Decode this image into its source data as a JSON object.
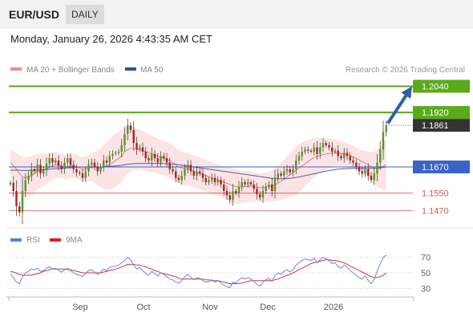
{
  "header": {
    "symbol": "EUR/USD",
    "timeframe": "DAILY",
    "timestamp": "Monday, January 26, 2026 4:43:35 AM CET"
  },
  "colors": {
    "resistance": "#5aaa1a",
    "support": "#3a63c8",
    "level_line": "#d9555a",
    "bollinger_fill": "#fde4e4",
    "ma20": "#e77b7b",
    "ma50": "#4a5fa8",
    "candle_up": "#4f9a1e",
    "candle_down": "#b01e1e",
    "arrow": "#2e5fa6",
    "price_box": "#333333",
    "rsi": "#6688d8",
    "rsi_9ma": "#d8333a"
  },
  "chart_data": [
    {
      "type": "candlestick",
      "legend": [
        {
          "label": "MA 20 + Bollinger Bands",
          "color": "#f08a8a"
        },
        {
          "label": "MA 50",
          "color": "#2f5597"
        }
      ],
      "source": "Research © 2026 Trading Central",
      "x_ticks": [
        "Sep",
        "Oct",
        "Nov",
        "Dec",
        "2026"
      ],
      "ylim": [
        1.142,
        1.2075
      ],
      "levels": [
        {
          "value": 1.204,
          "label": "1.2040",
          "kind": "resistance"
        },
        {
          "value": 1.192,
          "label": "1.1920",
          "kind": "resistance"
        },
        {
          "value": 1.1861,
          "label": "1.1861",
          "kind": "last-price"
        },
        {
          "value": 1.167,
          "label": "1.1670",
          "kind": "support"
        },
        {
          "value": 1.155,
          "label": "1.1550",
          "kind": "level"
        },
        {
          "value": 1.147,
          "label": "1.1470",
          "kind": "level"
        }
      ],
      "closes": [
        1.1598,
        1.156,
        1.149,
        1.1462,
        1.156,
        1.161,
        1.163,
        1.166,
        1.165,
        1.168,
        1.164,
        1.1655,
        1.1685,
        1.171,
        1.169,
        1.17,
        1.1675,
        1.166,
        1.169,
        1.171,
        1.168,
        1.166,
        1.1645,
        1.164,
        1.162,
        1.165,
        1.168,
        1.169,
        1.167,
        1.165,
        1.167,
        1.17,
        1.169,
        1.172,
        1.173,
        1.1735,
        1.174,
        1.177,
        1.182,
        1.186,
        1.184,
        1.178,
        1.175,
        1.176,
        1.174,
        1.171,
        1.17,
        1.173,
        1.171,
        1.169,
        1.172,
        1.171,
        1.169,
        1.166,
        1.165,
        1.162,
        1.161,
        1.163,
        1.166,
        1.168,
        1.165,
        1.163,
        1.165,
        1.164,
        1.162,
        1.16,
        1.161,
        1.162,
        1.16,
        1.161,
        1.159,
        1.156,
        1.154,
        1.152,
        1.156,
        1.155,
        1.158,
        1.16,
        1.159,
        1.16,
        1.159,
        1.157,
        1.1545,
        1.153,
        1.156,
        1.158,
        1.159,
        1.156,
        1.162,
        1.164,
        1.163,
        1.165,
        1.166,
        1.1645,
        1.166,
        1.17,
        1.172,
        1.174,
        1.175,
        1.1745,
        1.174,
        1.176,
        1.173,
        1.176,
        1.178,
        1.177,
        1.176,
        1.174,
        1.1745,
        1.172,
        1.171,
        1.1735,
        1.172,
        1.17,
        1.169,
        1.167,
        1.165,
        1.164,
        1.166,
        1.163,
        1.161,
        1.164,
        1.169,
        1.175,
        1.183,
        1.1861
      ],
      "ma20": [
        1.169,
        1.1675,
        1.166,
        1.164,
        1.1625,
        1.162,
        1.1625,
        1.163,
        1.164,
        1.165,
        1.165,
        1.1655,
        1.166,
        1.167,
        1.1675,
        1.168,
        1.168,
        1.1675,
        1.167,
        1.167,
        1.1675,
        1.1675,
        1.167,
        1.1665,
        1.166,
        1.166,
        1.1665,
        1.167,
        1.167,
        1.1665,
        1.1665,
        1.167,
        1.1675,
        1.168,
        1.169,
        1.17,
        1.171,
        1.172,
        1.174,
        1.175,
        1.1755,
        1.1755,
        1.175,
        1.175,
        1.1745,
        1.174,
        1.1735,
        1.173,
        1.1725,
        1.172,
        1.1715,
        1.171,
        1.1705,
        1.17,
        1.169,
        1.168,
        1.167,
        1.1665,
        1.166,
        1.166,
        1.1655,
        1.165,
        1.1645,
        1.164,
        1.1635,
        1.163,
        1.1625,
        1.162,
        1.1615,
        1.161,
        1.1605,
        1.16,
        1.1595,
        1.159,
        1.1585,
        1.158,
        1.1578,
        1.1578,
        1.158,
        1.1582,
        1.1582,
        1.158,
        1.1578,
        1.1575,
        1.1575,
        1.1578,
        1.158,
        1.1582,
        1.1588,
        1.1595,
        1.1605,
        1.1615,
        1.1625,
        1.1635,
        1.1645,
        1.1655,
        1.1665,
        1.1675,
        1.1685,
        1.1695,
        1.1705,
        1.1712,
        1.1718,
        1.1722,
        1.1726,
        1.173,
        1.1732,
        1.1734,
        1.1735,
        1.1734,
        1.1732,
        1.173,
        1.1726,
        1.1722,
        1.1716,
        1.171,
        1.1702,
        1.1694,
        1.1688,
        1.168,
        1.1672,
        1.1666,
        1.1664,
        1.1665,
        1.1672,
        1.1682
      ],
      "bb_width": [
        0.006,
        0.0065,
        0.0075,
        0.0085,
        0.009,
        0.0092,
        0.0092,
        0.009,
        0.0088,
        0.0082,
        0.0078,
        0.0074,
        0.007,
        0.0066,
        0.0062,
        0.006,
        0.0058,
        0.0056,
        0.0055,
        0.0055,
        0.0055,
        0.0055,
        0.0056,
        0.0056,
        0.0056,
        0.0058,
        0.006,
        0.0065,
        0.007,
        0.008,
        0.009,
        0.01,
        0.011,
        0.0115,
        0.012,
        0.0122,
        0.0122,
        0.012,
        0.0115,
        0.011,
        0.0105,
        0.01,
        0.0096,
        0.0092,
        0.009,
        0.0088,
        0.0086,
        0.0084,
        0.0082,
        0.008,
        0.008,
        0.008,
        0.008,
        0.008,
        0.008,
        0.0078,
        0.0076,
        0.0075,
        0.0074,
        0.0074,
        0.0074,
        0.0074,
        0.0074,
        0.0073,
        0.0072,
        0.0072,
        0.0072,
        0.0072,
        0.0072,
        0.0072,
        0.0072,
        0.0073,
        0.0075,
        0.0078,
        0.008,
        0.008,
        0.0078,
        0.0075,
        0.0072,
        0.007,
        0.0068,
        0.0066,
        0.0065,
        0.0065,
        0.0066,
        0.0068,
        0.007,
        0.0072,
        0.0076,
        0.008,
        0.0085,
        0.009,
        0.0095,
        0.01,
        0.0105,
        0.011,
        0.011,
        0.0108,
        0.0105,
        0.01,
        0.0095,
        0.009,
        0.0085,
        0.008,
        0.0076,
        0.0072,
        0.0068,
        0.0064,
        0.006,
        0.0058,
        0.0056,
        0.0054,
        0.0052,
        0.005,
        0.005,
        0.005,
        0.005,
        0.0052,
        0.0055,
        0.006,
        0.0065,
        0.0075,
        0.0085,
        0.0095,
        0.0105,
        0.0115
      ],
      "ma50": [
        1.1655,
        1.1655,
        1.1655,
        1.1655,
        1.1654,
        1.1654,
        1.1654,
        1.1655,
        1.1655,
        1.1656,
        1.1657,
        1.1658,
        1.1659,
        1.166,
        1.1661,
        1.1662,
        1.1663,
        1.1664,
        1.1665,
        1.1666,
        1.1667,
        1.1668,
        1.1669,
        1.167,
        1.167,
        1.167,
        1.167,
        1.167,
        1.167,
        1.167,
        1.167,
        1.1671,
        1.1672,
        1.1673,
        1.1674,
        1.1675,
        1.1676,
        1.1678,
        1.168,
        1.1682,
        1.1684,
        1.1685,
        1.1686,
        1.1686,
        1.1686,
        1.1686,
        1.1686,
        1.1686,
        1.1686,
        1.1686,
        1.1686,
        1.1686,
        1.1685,
        1.1684,
        1.1683,
        1.1682,
        1.168,
        1.1678,
        1.1676,
        1.1674,
        1.1672,
        1.167,
        1.1668,
        1.1666,
        1.1664,
        1.1662,
        1.166,
        1.1658,
        1.1656,
        1.1654,
        1.1652,
        1.165,
        1.1648,
        1.1646,
        1.1644,
        1.1642,
        1.164,
        1.1638,
        1.1636,
        1.1634,
        1.1632,
        1.163,
        1.1628,
        1.1626,
        1.1624,
        1.1622,
        1.162,
        1.1618,
        1.1617,
        1.1616,
        1.1616,
        1.1616,
        1.1617,
        1.1618,
        1.162,
        1.1622,
        1.1624,
        1.1627,
        1.163,
        1.1633,
        1.1636,
        1.1639,
        1.1642,
        1.1645,
        1.1648,
        1.1651,
        1.1654,
        1.1656,
        1.1658,
        1.166,
        1.1661,
        1.1662,
        1.1663,
        1.1664,
        1.1664,
        1.1664,
        1.1664,
        1.1664,
        1.1664,
        1.1664,
        1.1664,
        1.1664,
        1.1665,
        1.1666,
        1.1668,
        1.167
      ],
      "projection": {
        "from": 1.187,
        "to": 1.204
      }
    },
    {
      "type": "line",
      "legend": [
        {
          "label": "RSI",
          "color": "#5b7ed6"
        },
        {
          "label": "9MA",
          "color": "#dd1f26"
        }
      ],
      "y_ticks": [
        70,
        50,
        30
      ],
      "ylim": [
        20,
        80
      ],
      "rsi": [
        48,
        44,
        38,
        36,
        45,
        50,
        52,
        55,
        54,
        56,
        52,
        53,
        56,
        58,
        55,
        56,
        53,
        51,
        54,
        56,
        53,
        50,
        48,
        47,
        45,
        49,
        53,
        54,
        51,
        48,
        51,
        55,
        53,
        57,
        58,
        59,
        60,
        63,
        66,
        70,
        67,
        60,
        55,
        57,
        53,
        49,
        47,
        52,
        49,
        46,
        50,
        48,
        45,
        42,
        41,
        38,
        37,
        40,
        45,
        48,
        44,
        41,
        44,
        43,
        40,
        38,
        39,
        41,
        38,
        40,
        37,
        34,
        32,
        31,
        38,
        37,
        41,
        44,
        42,
        44,
        42,
        39,
        35,
        33,
        38,
        41,
        43,
        39,
        47,
        50,
        48,
        52,
        54,
        51,
        54,
        60,
        63,
        66,
        68,
        67,
        66,
        69,
        63,
        67,
        70,
        68,
        66,
        62,
        63,
        58,
        56,
        60,
        57,
        53,
        50,
        47,
        44,
        42,
        46,
        40,
        36,
        42,
        52,
        62,
        70,
        73
      ],
      "ma9": [
        52,
        51,
        50,
        48,
        47,
        47,
        47,
        47,
        48,
        49,
        50,
        52,
        53,
        54,
        55,
        55,
        55,
        55,
        55,
        54,
        54,
        53,
        52,
        51,
        50,
        50,
        50,
        50,
        50,
        50,
        50,
        51,
        52,
        53,
        54,
        55,
        56,
        58,
        59,
        61,
        61,
        61,
        60,
        60,
        59,
        58,
        56,
        55,
        53,
        52,
        50,
        49,
        48,
        47,
        46,
        45,
        43,
        42,
        42,
        42,
        42,
        42,
        42,
        42,
        42,
        41,
        41,
        40,
        40,
        40,
        39,
        38,
        37,
        36,
        36,
        36,
        36,
        37,
        38,
        39,
        40,
        40,
        40,
        40,
        40,
        40,
        40,
        40,
        41,
        42,
        44,
        45,
        47,
        48,
        50,
        52,
        54,
        56,
        58,
        60,
        62,
        63,
        64,
        65,
        66,
        67,
        67,
        66,
        66,
        65,
        64,
        63,
        61,
        59,
        57,
        55,
        53,
        51,
        49,
        47,
        45,
        44,
        44,
        45,
        47,
        50
      ]
    }
  ]
}
